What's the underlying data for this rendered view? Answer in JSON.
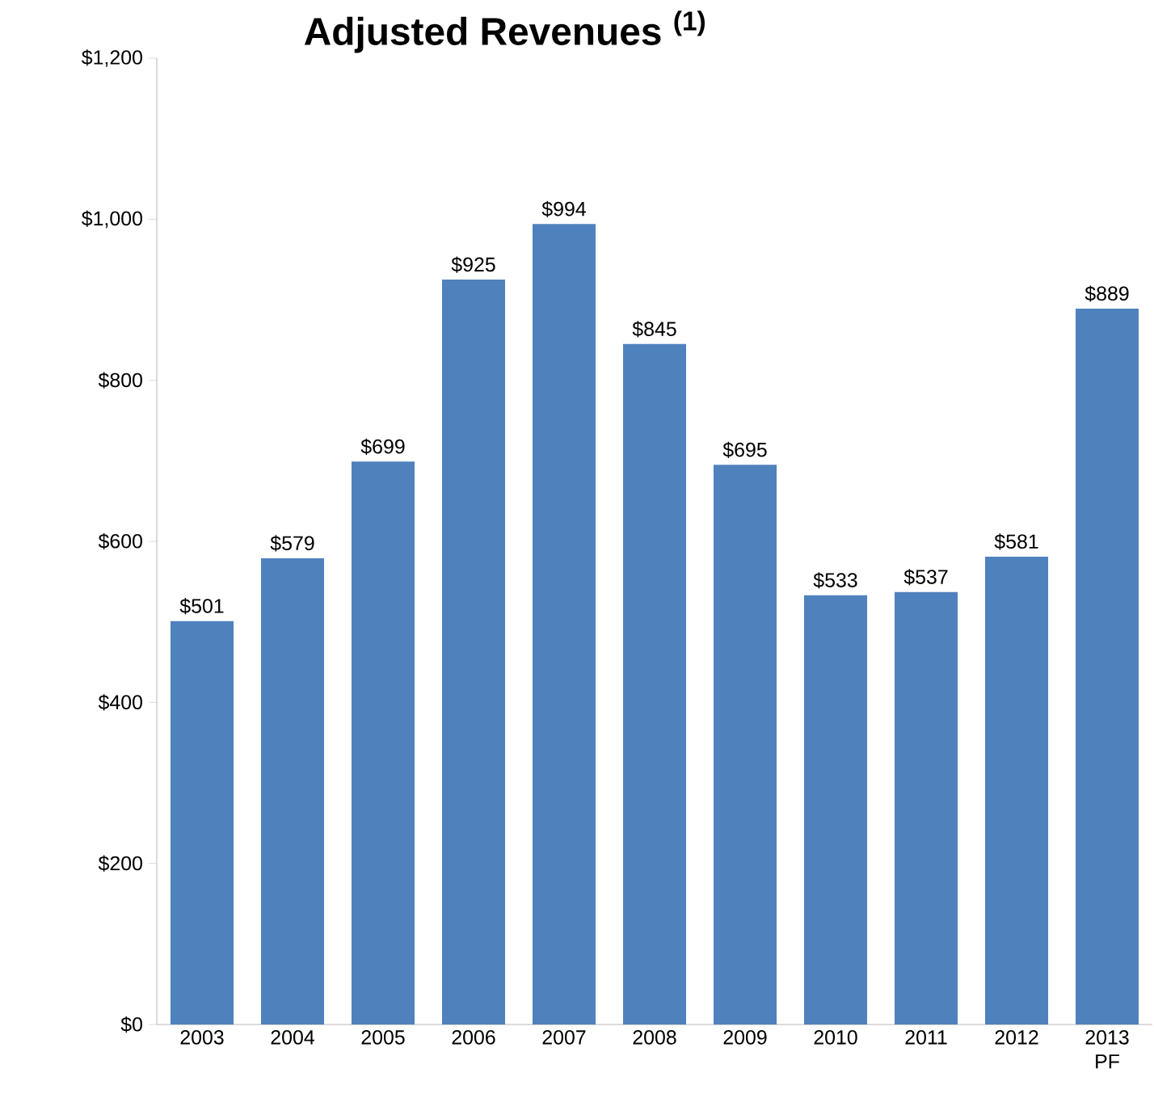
{
  "chart_data": {
    "type": "bar",
    "title": "Adjusted Revenues $^{(1)}$",
    "categories": [
      "2003",
      "2004",
      "2005",
      "2006",
      "2007",
      "2008",
      "2009",
      "2010",
      "2011",
      "2012",
      "2013 PF"
    ],
    "values": [
      501,
      579,
      699,
      925,
      994,
      845,
      695,
      533,
      537,
      581,
      889
    ],
    "value_labels": [
      "$501",
      "$579",
      "$699",
      "$925",
      "$994",
      "$845",
      "$695",
      "$533",
      "$537",
      "$581",
      "$889"
    ],
    "color": "#4f81bd",
    "ylim": [
      0,
      1200
    ],
    "yticks": [
      {
        "value": 0,
        "label": "$0"
      },
      {
        "value": 200,
        "label": "$200"
      },
      {
        "value": 400,
        "label": "$400"
      },
      {
        "value": 600,
        "label": "$600"
      },
      {
        "value": 800,
        "label": "$800"
      },
      {
        "value": 1000,
        "label": "$1,000"
      },
      {
        "value": 1200,
        "label": "$1,200"
      }
    ]
  }
}
